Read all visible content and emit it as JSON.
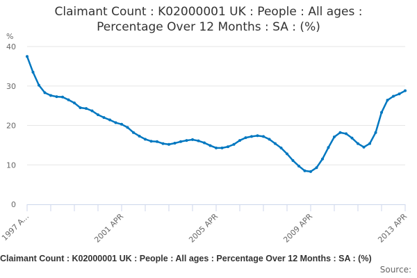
{
  "chart_data": {
    "type": "line",
    "title_lines": [
      "Claimant Count : K02000001 UK : People : All ages :",
      "Percentage Over 12 Months : SA : (%)"
    ],
    "ylabel": "%",
    "ylim": [
      0,
      40
    ],
    "yticks": [
      0,
      10,
      20,
      30,
      40
    ],
    "xlim": [
      "1997-04",
      "2013-04"
    ],
    "xtick_labels": [
      "1997 A...",
      "2001 APR",
      "2005 APR",
      "2009 APR",
      "2013 APR"
    ],
    "xtick_dates": [
      "1997-04",
      "2001-04",
      "2005-04",
      "2009-04",
      "2013-04"
    ],
    "grid": "horizontal",
    "color": "#0077c0",
    "series": [
      {
        "x": [
          "1997-04",
          "1997-07",
          "1997-10",
          "1998-01",
          "1998-04",
          "1998-07",
          "1998-10",
          "1999-01",
          "1999-04",
          "1999-07",
          "1999-10",
          "2000-01",
          "2000-04",
          "2000-07",
          "2000-10",
          "2001-01",
          "2001-04",
          "2001-07",
          "2001-10",
          "2002-01",
          "2002-04",
          "2002-07",
          "2002-10",
          "2003-01",
          "2003-04",
          "2003-07",
          "2003-10",
          "2004-01",
          "2004-04",
          "2004-07",
          "2004-10",
          "2005-01",
          "2005-04",
          "2005-07",
          "2005-10",
          "2006-01",
          "2006-04",
          "2006-07",
          "2006-10",
          "2007-01",
          "2007-04",
          "2007-07",
          "2007-10",
          "2008-01",
          "2008-04",
          "2008-07",
          "2008-10",
          "2009-01",
          "2009-04",
          "2009-07",
          "2009-10",
          "2010-01",
          "2010-04",
          "2010-07",
          "2010-10",
          "2011-01",
          "2011-04",
          "2011-07",
          "2011-10",
          "2012-01",
          "2012-04",
          "2012-07",
          "2012-10",
          "2013-01",
          "2013-04"
        ],
        "values": [
          37.5,
          33.5,
          30.2,
          28.3,
          27.6,
          27.3,
          27.2,
          26.5,
          25.7,
          24.5,
          24.3,
          23.7,
          22.7,
          22.0,
          21.4,
          20.7,
          20.3,
          19.5,
          18.2,
          17.3,
          16.5,
          16.0,
          15.9,
          15.4,
          15.2,
          15.5,
          15.9,
          16.2,
          16.4,
          16.1,
          15.6,
          14.9,
          14.3,
          14.3,
          14.6,
          15.2,
          16.2,
          16.9,
          17.2,
          17.4,
          17.2,
          16.5,
          15.4,
          14.3,
          12.8,
          11.1,
          9.7,
          8.5,
          8.3,
          9.3,
          11.5,
          14.4,
          17.1,
          18.2,
          17.9,
          16.8,
          15.4,
          14.5,
          15.4,
          18.2,
          23.3,
          26.4,
          27.4,
          28.0,
          28.8
        ]
      }
    ],
    "footer": "Claimant Count : K02000001 UK : People : All ages : Percentage Over 12 Months : SA : (%)",
    "source_label": "Source:"
  }
}
